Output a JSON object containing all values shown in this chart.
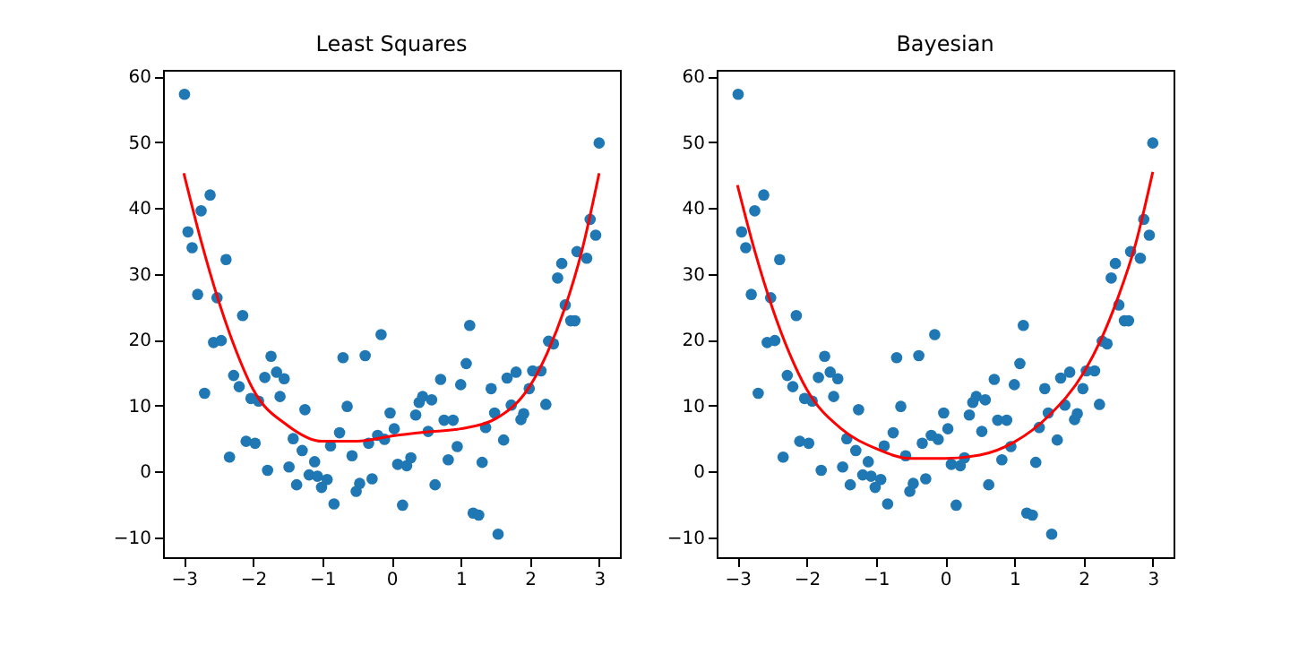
{
  "chart_data": [
    {
      "type": "scatter",
      "title": "Least Squares",
      "xlim": [
        -3.3,
        3.3
      ],
      "ylim": [
        -13,
        61
      ],
      "xticks": [
        -3,
        -2,
        -1,
        0,
        1,
        2,
        3
      ],
      "yticks": [
        -10,
        0,
        10,
        20,
        30,
        40,
        50,
        60
      ],
      "grid": false,
      "series": [
        {
          "marker": "circle",
          "color": "#1f77b4",
          "x": [
            -2.99,
            -2.94,
            -2.88,
            -2.62,
            -2.75,
            -2.8,
            -2.39,
            -2.52,
            -2.15,
            -2.57,
            -2.46,
            -2.28,
            -2.2,
            -2.7,
            -2.03,
            -1.92,
            -1.74,
            -1.83,
            -1.66,
            -1.55,
            -1.61,
            -1.25,
            -2.1,
            -1.97,
            -2.34,
            -1.79,
            -1.42,
            -1.29,
            -1.11,
            -1.48,
            -1.37,
            -1.19,
            -1.07,
            -0.93,
            -1.01,
            -0.83,
            -0.7,
            -0.38,
            -0.15,
            -0.64,
            -0.75,
            -0.88,
            -0.57,
            -0.46,
            -0.51,
            -0.28,
            -0.33,
            -0.2,
            -0.1,
            -0.02,
            0.04,
            0.09,
            0.22,
            0.28,
            0.16,
            0.35,
            0.4,
            0.45,
            0.58,
            0.53,
            0.63,
            0.71,
            0.76,
            0.89,
            0.82,
            0.95,
            1.0,
            1.08,
            1.13,
            1.18,
            1.26,
            1.31,
            1.36,
            1.44,
            1.49,
            1.54,
            1.62,
            1.67,
            1.73,
            1.8,
            1.87,
            1.91,
            1.99,
            2.04,
            2.16,
            2.23,
            2.27,
            2.34,
            2.4,
            2.46,
            2.51,
            2.59,
            2.65,
            2.68,
            2.82,
            2.87,
            2.95,
            3.0
          ],
          "values": [
            57.3,
            36.4,
            34.0,
            42.0,
            39.6,
            26.9,
            32.2,
            26.4,
            23.7,
            19.6,
            19.9,
            14.6,
            12.9,
            11.9,
            11.1,
            10.7,
            17.5,
            14.3,
            15.1,
            14.1,
            11.4,
            9.4,
            4.6,
            4.3,
            2.2,
            0.2,
            5.0,
            3.2,
            1.5,
            0.7,
            -2.0,
            -0.5,
            -0.7,
            -1.2,
            -2.4,
            -4.9,
            17.3,
            17.6,
            20.8,
            9.9,
            5.9,
            3.9,
            2.4,
            -1.8,
            -3.0,
            -1.1,
            4.3,
            5.5,
            4.9,
            8.9,
            6.5,
            1.1,
            0.9,
            2.1,
            -5.1,
            8.6,
            10.5,
            11.4,
            10.9,
            6.1,
            -2.0,
            14.0,
            7.8,
            7.8,
            1.8,
            3.8,
            13.2,
            16.4,
            22.2,
            -6.3,
            -6.6,
            1.4,
            6.7,
            12.6,
            8.9,
            -9.5,
            4.8,
            14.2,
            10.1,
            15.1,
            7.9,
            8.8,
            12.6,
            15.3,
            15.3,
            10.2,
            19.8,
            19.4,
            29.4,
            31.6,
            25.3,
            22.9,
            22.9,
            33.4,
            32.4,
            38.3,
            35.9,
            49.9
          ]
        },
        {
          "type": "line",
          "color": "#ff0000",
          "x": [
            -3,
            -2.75,
            -2.5,
            -2.25,
            -2,
            -1.5,
            -1,
            -0.5,
            0,
            0.5,
            1,
            1.5,
            2,
            2.25,
            2.5,
            2.75,
            3
          ],
          "values": [
            45.3,
            35,
            26,
            18.5,
            12.5,
            7,
            4.6,
            4.6,
            5.4,
            6,
            6.5,
            8,
            13,
            18,
            24.7,
            33.5,
            45.3
          ]
        }
      ]
    },
    {
      "type": "scatter",
      "title": "Bayesian",
      "xlim": [
        -3.3,
        3.3
      ],
      "ylim": [
        -13,
        61
      ],
      "xticks": [
        -3,
        -2,
        -1,
        0,
        1,
        2,
        3
      ],
      "yticks": [
        -10,
        0,
        10,
        20,
        30,
        40,
        50,
        60
      ],
      "grid": false,
      "series": [
        {
          "marker": "circle",
          "color": "#1f77b4",
          "x": [
            -2.99,
            -2.94,
            -2.88,
            -2.62,
            -2.75,
            -2.8,
            -2.39,
            -2.52,
            -2.15,
            -2.57,
            -2.46,
            -2.28,
            -2.2,
            -2.7,
            -2.03,
            -1.92,
            -1.74,
            -1.83,
            -1.66,
            -1.55,
            -1.61,
            -1.25,
            -2.1,
            -1.97,
            -2.34,
            -1.79,
            -1.42,
            -1.29,
            -1.11,
            -1.48,
            -1.37,
            -1.19,
            -1.07,
            -0.93,
            -1.01,
            -0.83,
            -0.7,
            -0.38,
            -0.15,
            -0.64,
            -0.75,
            -0.88,
            -0.57,
            -0.46,
            -0.51,
            -0.28,
            -0.33,
            -0.2,
            -0.1,
            -0.02,
            0.04,
            0.09,
            0.22,
            0.28,
            0.16,
            0.35,
            0.4,
            0.45,
            0.58,
            0.53,
            0.63,
            0.71,
            0.76,
            0.89,
            0.82,
            0.95,
            1.0,
            1.08,
            1.13,
            1.18,
            1.26,
            1.31,
            1.36,
            1.44,
            1.49,
            1.54,
            1.62,
            1.67,
            1.73,
            1.8,
            1.87,
            1.91,
            1.99,
            2.04,
            2.16,
            2.23,
            2.27,
            2.34,
            2.4,
            2.46,
            2.51,
            2.59,
            2.65,
            2.68,
            2.82,
            2.87,
            2.95,
            3.0
          ],
          "values": [
            57.3,
            36.4,
            34.0,
            42.0,
            39.6,
            26.9,
            32.2,
            26.4,
            23.7,
            19.6,
            19.9,
            14.6,
            12.9,
            11.9,
            11.1,
            10.7,
            17.5,
            14.3,
            15.1,
            14.1,
            11.4,
            9.4,
            4.6,
            4.3,
            2.2,
            0.2,
            5.0,
            3.2,
            1.5,
            0.7,
            -2.0,
            -0.5,
            -0.7,
            -1.2,
            -2.4,
            -4.9,
            17.3,
            17.6,
            20.8,
            9.9,
            5.9,
            3.9,
            2.4,
            -1.8,
            -3.0,
            -1.1,
            4.3,
            5.5,
            4.9,
            8.9,
            6.5,
            1.1,
            0.9,
            2.1,
            -5.1,
            8.6,
            10.5,
            11.4,
            10.9,
            6.1,
            -2.0,
            14.0,
            7.8,
            7.8,
            1.8,
            3.8,
            13.2,
            16.4,
            22.2,
            -6.3,
            -6.6,
            1.4,
            6.7,
            12.6,
            8.9,
            -9.5,
            4.8,
            14.2,
            10.1,
            15.1,
            7.9,
            8.8,
            12.6,
            15.3,
            15.3,
            10.2,
            19.8,
            19.4,
            29.4,
            31.6,
            25.3,
            22.9,
            22.9,
            33.4,
            32.4,
            38.3,
            35.9,
            49.9
          ]
        },
        {
          "type": "line",
          "color": "#ff0000",
          "x": [
            -3,
            -2.75,
            -2.5,
            -2.25,
            -2,
            -1.5,
            -1,
            -0.5,
            0,
            0.5,
            1,
            1.5,
            2,
            2.25,
            2.5,
            2.75,
            3
          ],
          "values": [
            43.5,
            33.5,
            25,
            18,
            12.5,
            6.5,
            3.5,
            2,
            2,
            2.5,
            4.5,
            8.5,
            15,
            20,
            26.5,
            34.5,
            45.5
          ]
        }
      ]
    }
  ]
}
